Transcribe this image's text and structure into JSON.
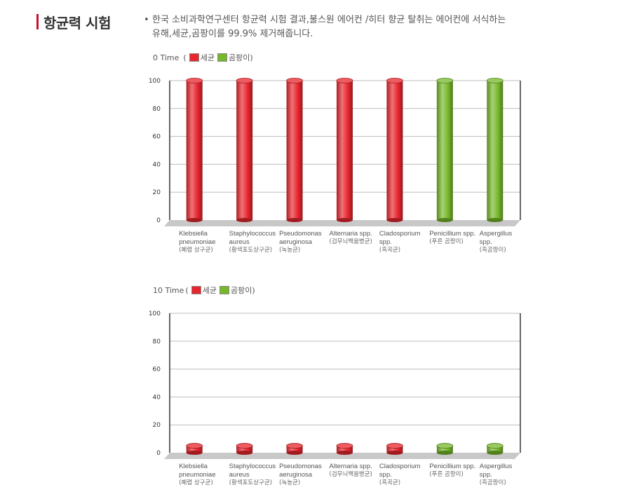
{
  "header": {
    "title": "항균력 시험",
    "bullet": "•",
    "desc_line1": "한국 소비과학연구센터 항균력 시험 결과,불스원 에어컨 /히터 향균 탈취는 에어컨에 서식하는",
    "desc_line2": "유해,세균,곰팡이를 99.9% 제거해줍니다."
  },
  "legend": {
    "open": "(",
    "close": ")",
    "bacteria": "세균",
    "mold": "곰팡이"
  },
  "colors": {
    "bacteria": "#e8262e",
    "mold": "#76b82a",
    "accent": "#c8102e"
  },
  "chart_data": [
    {
      "type": "bar",
      "title": "0 Time",
      "ylim": [
        0,
        100
      ],
      "yticks": [
        "0",
        "20",
        "40",
        "60",
        "80",
        "100"
      ],
      "categories": [
        {
          "name_lines": [
            "Klebsiella",
            "pneumoniae"
          ],
          "sub": "(폐렴 상구균)",
          "group": "bacteria"
        },
        {
          "name_lines": [
            "Staphylococcus",
            "aureus"
          ],
          "sub": "(황색포도상구균)",
          "group": "bacteria"
        },
        {
          "name_lines": [
            "Pseudomonas",
            "aeruginosa"
          ],
          "sub": "(녹농균)",
          "group": "bacteria"
        },
        {
          "name_lines": [
            "Alternaria spp."
          ],
          "sub": "(검무늬백움병균)",
          "group": "bacteria"
        },
        {
          "name_lines": [
            "Cladosporium",
            "spp."
          ],
          "sub": "(흑곡균)",
          "group": "bacteria"
        },
        {
          "name_lines": [
            "Penicillium spp."
          ],
          "sub": "(푸른 곰팡이)",
          "group": "mold"
        },
        {
          "name_lines": [
            "Aspergillus",
            "spp."
          ],
          "sub": "(흑곰팡이)",
          "group": "mold"
        }
      ],
      "values": [
        100,
        100,
        100,
        100,
        100,
        100,
        100
      ]
    },
    {
      "type": "bar",
      "title": "10 Time",
      "ylim": [
        0,
        100
      ],
      "yticks": [
        "0",
        "20",
        "40",
        "60",
        "80",
        "100"
      ],
      "categories": [
        {
          "name_lines": [
            "Klebsiella",
            "pneumoniae"
          ],
          "sub": "(폐렴 상구균)",
          "group": "bacteria"
        },
        {
          "name_lines": [
            "Staphylococcus",
            "aureus"
          ],
          "sub": "(황색포도상구균)",
          "group": "bacteria"
        },
        {
          "name_lines": [
            "Pseudomonas",
            "aeruginosa"
          ],
          "sub": "(녹농균)",
          "group": "bacteria"
        },
        {
          "name_lines": [
            "Alternaria spp."
          ],
          "sub": "(검무늬백움병균)",
          "group": "bacteria"
        },
        {
          "name_lines": [
            "Cladosporium",
            "spp."
          ],
          "sub": "(흑곡균)",
          "group": "bacteria"
        },
        {
          "name_lines": [
            "Penicillium spp."
          ],
          "sub": "(푸른 곰팡이)",
          "group": "mold"
        },
        {
          "name_lines": [
            "Aspergillus",
            "spp."
          ],
          "sub": "(흑곰팡이)",
          "group": "mold"
        }
      ],
      "values": [
        5,
        5,
        5,
        5,
        5,
        5,
        5
      ]
    }
  ]
}
